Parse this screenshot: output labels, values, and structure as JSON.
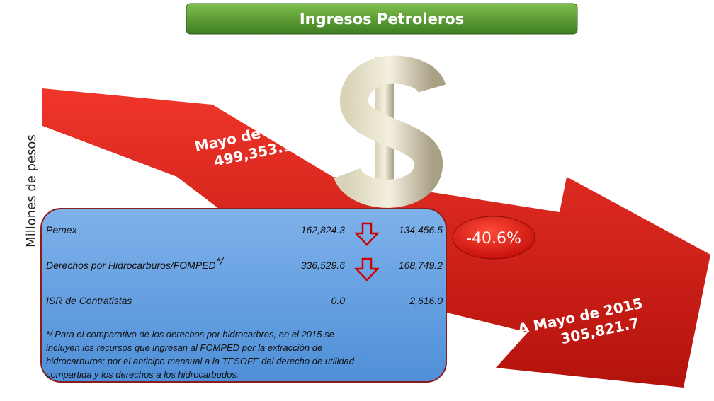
{
  "header": {
    "title": "Ingresos Petroleros"
  },
  "axis_label": "Millones de pesos",
  "start": {
    "label": "Mayo de 2014",
    "value": "499,353.9"
  },
  "end": {
    "label": "A Mayo de 2015",
    "value": "305,821.7"
  },
  "change": "-40.6%",
  "table": {
    "rows": [
      [
        "Pemex",
        "162,824.3",
        "134,456.5"
      ],
      [
        "Derechos por Hidrocarburos/FOMPED",
        "336,529.6",
        "168,749.2"
      ],
      [
        "ISR de Contratistas",
        "0.0",
        "2,616.0"
      ]
    ],
    "footnote_mark": "*/"
  },
  "footnote": {
    "lines": [
      "*/ Para el comparativo de los derechos por hidrocarbros, en el 2015 se",
      "incluyen los recursos que ingresan al FOMPED por la extracción de",
      "hidrocarburos; por el anticipo mensual a la TESOFE del derecho de utilidad",
      "compartida y los derechos a los hidrocarbudos."
    ]
  }
}
